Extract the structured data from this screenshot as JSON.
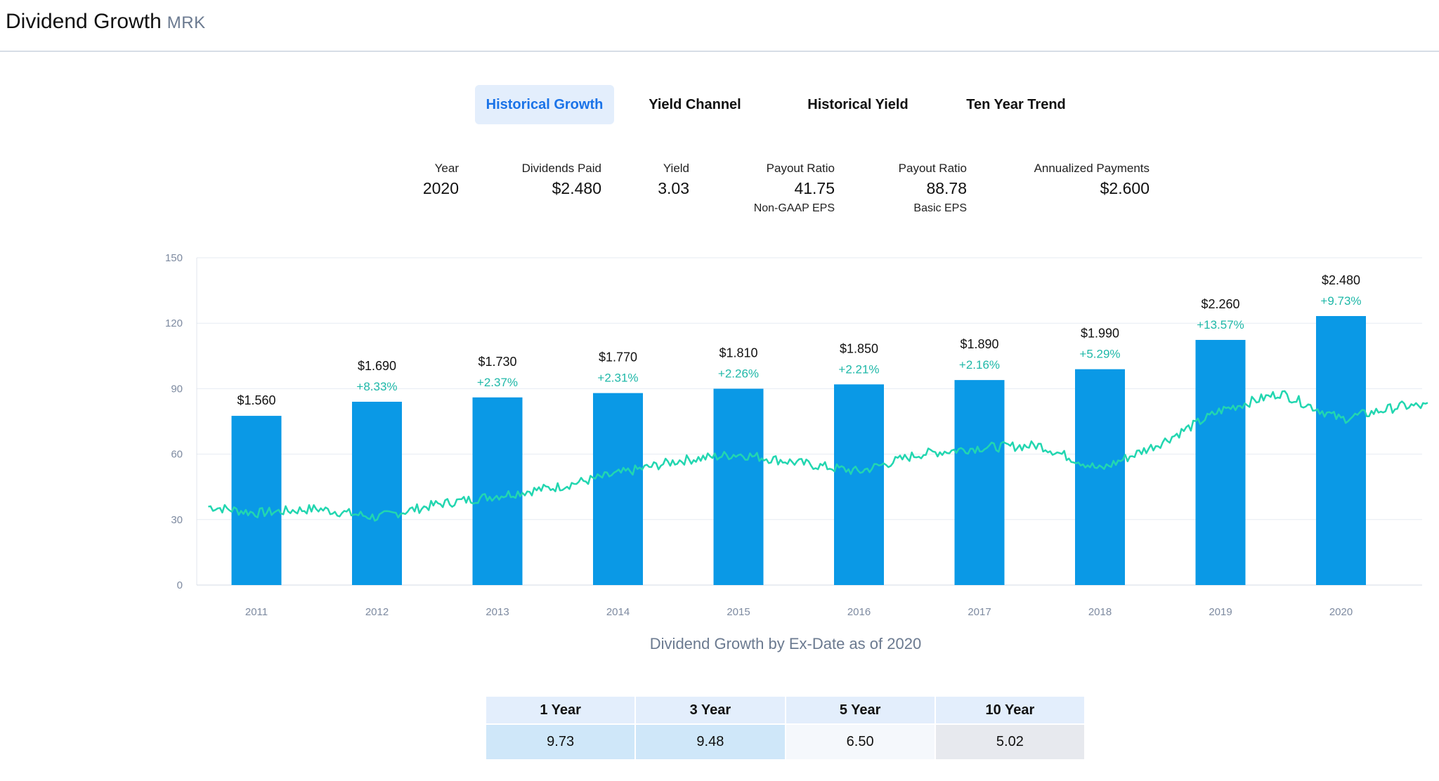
{
  "header": {
    "title": "Dividend Growth",
    "ticker": "MRK"
  },
  "tabs": [
    {
      "label": "Historical Growth",
      "active": true
    },
    {
      "label": "Yield Channel",
      "active": false
    },
    {
      "label": "Historical Yield",
      "active": false
    },
    {
      "label": "Ten Year Trend",
      "active": false
    }
  ],
  "stats": {
    "year": {
      "label": "Year",
      "value": "2020"
    },
    "dividends_paid": {
      "label": "Dividends Paid",
      "value": "$2.480"
    },
    "yield": {
      "label": "Yield",
      "value": "3.03"
    },
    "payout_non_gaap": {
      "label": "Payout Ratio",
      "value": "41.75",
      "sub": "Non-GAAP EPS"
    },
    "payout_basic": {
      "label": "Payout Ratio",
      "value": "88.78",
      "sub": "Basic EPS"
    },
    "annualized": {
      "label": "Annualized Payments",
      "value": "$2.600"
    }
  },
  "colors": {
    "bar": "#0a99e6",
    "price_line": "#22d6b0",
    "growth_label": "#1fb8a8",
    "active_tab": "#1a73e8"
  },
  "chart_data": {
    "type": "bar",
    "title": "Dividend Growth by Ex-Date as of 2020",
    "categories": [
      "2011",
      "2012",
      "2013",
      "2014",
      "2015",
      "2016",
      "2017",
      "2018",
      "2019",
      "2020"
    ],
    "values": [
      1.56,
      1.69,
      1.73,
      1.77,
      1.81,
      1.85,
      1.89,
      1.99,
      2.26,
      2.48
    ],
    "value_labels": [
      "$1.560",
      "$1.690",
      "$1.730",
      "$1.770",
      "$1.810",
      "$1.850",
      "$1.890",
      "$1.990",
      "$2.260",
      "$2.480"
    ],
    "growth_labels": [
      "",
      "+8.33%",
      "+2.37%",
      "+2.31%",
      "+2.26%",
      "+2.21%",
      "+2.16%",
      "+5.29%",
      "+13.57%",
      "+9.73%"
    ],
    "y_ticks": [
      "0",
      "30",
      "60",
      "90",
      "120",
      "150"
    ],
    "ylim": [
      0,
      150
    ],
    "grid": true,
    "price_series": {
      "type": "line",
      "x": [
        "2010.6",
        "2011.0",
        "2011.5",
        "2012.0",
        "2012.5",
        "2013.0",
        "2013.5",
        "2014.0",
        "2014.5",
        "2015.0",
        "2015.5",
        "2016.0",
        "2016.5",
        "2017.0",
        "2017.5",
        "2018.0",
        "2018.5",
        "2019.0",
        "2019.5",
        "2020.0",
        "2020.5"
      ],
      "values": [
        36,
        33,
        35,
        31,
        37,
        41,
        45,
        51,
        57,
        60,
        56,
        52,
        60,
        63,
        64,
        53,
        65,
        80,
        88,
        76,
        82
      ]
    }
  },
  "growth_table": {
    "headers": [
      "1 Year",
      "3 Year",
      "5 Year",
      "10 Year"
    ],
    "values": [
      "9.73",
      "9.48",
      "6.50",
      "5.02"
    ],
    "cell_colors": [
      "#cfe7f9",
      "#cfe7f9",
      "#f5f8fc",
      "#e7e9ee"
    ]
  }
}
